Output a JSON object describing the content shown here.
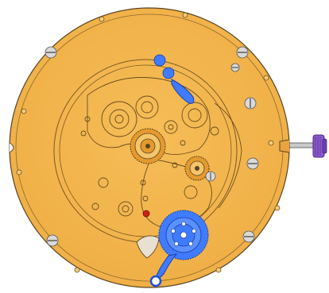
{
  "diagram": {
    "subject": "mechanical-watch-movement",
    "colors": {
      "plate": "#F1B24A",
      "plate_shade": "#E0A03C",
      "outline": "#5A4420",
      "gear_gold": "#E59A2E",
      "gear_gold_light": "#F4C56A",
      "highlight": "#3F7BFF",
      "highlight_dark": "#1D4FD6",
      "crown": "#8A5BD0",
      "crown_dark": "#5B2E99",
      "stem": "#BFBFBF",
      "screw": "#D9D9D9",
      "jewel": "#D11E1E"
    },
    "parts": [
      "main-plate",
      "crown",
      "winding-stem",
      "center-wheel",
      "third-wheel",
      "blue-highlighted-wheel",
      "blue-indicator-arm-top",
      "blue-indicator-arm-bottom",
      "ruby-jewel",
      "plate-screws"
    ]
  }
}
